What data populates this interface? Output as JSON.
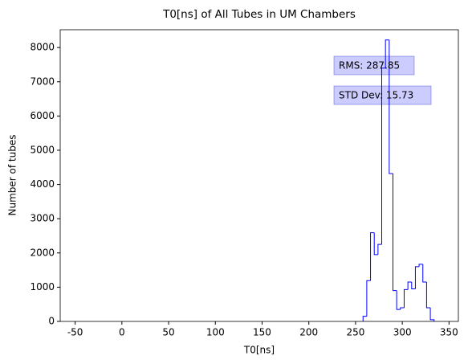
{
  "chart_data": {
    "type": "histogram",
    "title": "T0[ns] of All Tubes in UM Chambers",
    "xlabel": "T0[ns]",
    "ylabel": "Number of tubes",
    "bins": [
      258,
      262,
      266,
      270,
      274,
      278,
      282,
      286,
      290,
      294,
      298,
      302,
      306,
      310,
      314,
      318,
      322,
      326,
      330,
      334
    ],
    "values": [
      150,
      1190,
      2590,
      1950,
      2250,
      7400,
      8220,
      4320,
      900,
      350,
      400,
      930,
      1150,
      950,
      1600,
      1670,
      1150,
      400,
      50
    ],
    "color": "#0000ff",
    "xlim": [
      -66,
      360
    ],
    "xticks": [
      -50,
      0,
      50,
      100,
      150,
      200,
      250,
      300,
      350
    ],
    "ylim": [
      0,
      8520
    ],
    "yticks": [
      0,
      1000,
      2000,
      3000,
      4000,
      5000,
      6000,
      7000,
      8000
    ],
    "annotations": [
      "RMS: 287.85",
      "STD Dev: 15.73"
    ]
  }
}
